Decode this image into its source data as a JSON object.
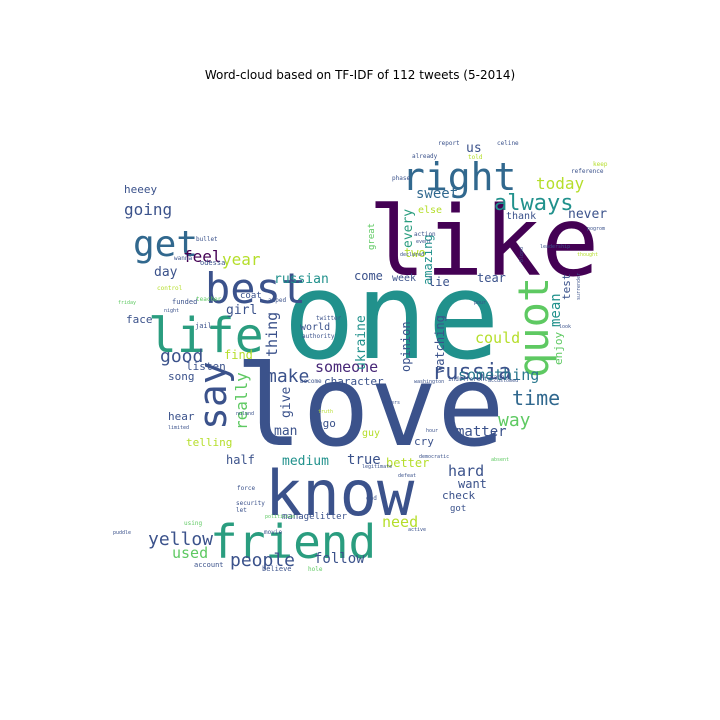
{
  "chart_data": {
    "type": "wordcloud",
    "title": "Word-cloud based on TF-IDF of 112 tweets (5-2014)",
    "shape": "twitter-bird",
    "colormap": "viridis",
    "words": [
      {
        "text": "one",
        "weight": 1.0,
        "color": "#21918c"
      },
      {
        "text": "love",
        "weight": 0.98,
        "color": "#3b528b"
      },
      {
        "text": "like",
        "weight": 0.85,
        "color": "#440154"
      },
      {
        "text": "know",
        "weight": 0.62,
        "color": "#3b528b"
      },
      {
        "text": "friend",
        "weight": 0.48,
        "color": "#2a9d7f"
      },
      {
        "text": "life",
        "weight": 0.47,
        "color": "#2a9d7f"
      },
      {
        "text": "best",
        "weight": 0.44,
        "color": "#3b528b"
      },
      {
        "text": "right",
        "weight": 0.42,
        "color": "#31688e"
      },
      {
        "text": "quot",
        "weight": 0.4,
        "color": "#5ec962"
      },
      {
        "text": "say",
        "weight": 0.4,
        "color": "#3b528b"
      },
      {
        "text": "get",
        "weight": 0.36,
        "color": "#31688e"
      },
      {
        "text": "always",
        "weight": 0.24,
        "color": "#21918c"
      },
      {
        "text": "russia",
        "weight": 0.22,
        "color": "#3b528b"
      },
      {
        "text": "people",
        "weight": 0.21,
        "color": "#3b528b"
      },
      {
        "text": "time",
        "weight": 0.2,
        "color": "#31688e"
      },
      {
        "text": "good",
        "weight": 0.19,
        "color": "#3b528b"
      },
      {
        "text": "make",
        "weight": 0.19,
        "color": "#3b528b"
      },
      {
        "text": "yellow",
        "weight": 0.18,
        "color": "#3b528b"
      },
      {
        "text": "feel",
        "weight": 0.17,
        "color": "#440154"
      },
      {
        "text": "going",
        "weight": 0.17,
        "color": "#3b528b"
      },
      {
        "text": "today",
        "weight": 0.17,
        "color": "#b5de2b"
      },
      {
        "text": "year",
        "weight": 0.17,
        "color": "#b5de2b"
      },
      {
        "text": "way",
        "weight": 0.17,
        "color": "#5ec962"
      },
      {
        "text": "something",
        "weight": 0.17,
        "color": "#2a788e"
      },
      {
        "text": "someone",
        "weight": 0.16,
        "color": "#482878"
      },
      {
        "text": "really",
        "weight": 0.16,
        "color": "#5ec962"
      },
      {
        "text": "matter",
        "weight": 0.15,
        "color": "#3b528b"
      },
      {
        "text": "sweet",
        "weight": 0.15,
        "color": "#31688e"
      },
      {
        "text": "need",
        "weight": 0.15,
        "color": "#b5de2b"
      },
      {
        "text": "hard",
        "weight": 0.15,
        "color": "#3b528b"
      },
      {
        "text": "could",
        "weight": 0.15,
        "color": "#b5de2b"
      },
      {
        "text": "used",
        "weight": 0.14,
        "color": "#5ec962"
      },
      {
        "text": "follow",
        "weight": 0.14,
        "color": "#3b528b"
      },
      {
        "text": "thing",
        "weight": 0.14,
        "color": "#3b528b"
      },
      {
        "text": "true",
        "weight": 0.14,
        "color": "#3b528b"
      },
      {
        "text": "mean",
        "weight": 0.14,
        "color": "#21918c"
      },
      {
        "text": "watching",
        "weight": 0.13,
        "color": "#3b528b"
      },
      {
        "text": "opinion",
        "weight": 0.13,
        "color": "#3b528b"
      },
      {
        "text": "russian",
        "weight": 0.13,
        "color": "#21918c"
      },
      {
        "text": "ukraine",
        "weight": 0.13,
        "color": "#21918c"
      },
      {
        "text": "medium",
        "weight": 0.13,
        "color": "#21918c"
      },
      {
        "text": "never",
        "weight": 0.12,
        "color": "#3b528b"
      },
      {
        "text": "every",
        "weight": 0.12,
        "color": "#2a9d7f"
      },
      {
        "text": "us",
        "weight": 0.12,
        "color": "#3b528b"
      },
      {
        "text": "give",
        "weight": 0.12,
        "color": "#3b528b"
      },
      {
        "text": "find",
        "weight": 0.12,
        "color": "#b5de2b"
      },
      {
        "text": "half",
        "weight": 0.12,
        "color": "#3b528b"
      },
      {
        "text": "man",
        "weight": 0.12,
        "color": "#3b528b"
      },
      {
        "text": "day",
        "weight": 0.12,
        "color": "#3b528b"
      },
      {
        "text": "girl",
        "weight": 0.11,
        "color": "#3b528b"
      },
      {
        "text": "amazing",
        "weight": 0.11,
        "color": "#21918c"
      },
      {
        "text": "come",
        "weight": 0.11,
        "color": "#3b528b"
      },
      {
        "text": "two",
        "weight": 0.11,
        "color": "#b5de2b"
      },
      {
        "text": "lie",
        "weight": 0.11,
        "color": "#3b528b"
      },
      {
        "text": "tear",
        "weight": 0.11,
        "color": "#3b528b"
      },
      {
        "text": "better",
        "weight": 0.11,
        "color": "#b5de2b"
      },
      {
        "text": "want",
        "weight": 0.11,
        "color": "#3b528b"
      },
      {
        "text": "loud",
        "weight": 0.11,
        "color": "#3b528b"
      },
      {
        "text": "test",
        "weight": 0.1,
        "color": "#3b528b"
      },
      {
        "text": "enjoy",
        "weight": 0.1,
        "color": "#5ec962"
      },
      {
        "text": "character",
        "weight": 0.1,
        "color": "#3b528b"
      },
      {
        "text": "heeey",
        "weight": 0.1,
        "color": "#3b528b"
      },
      {
        "text": "world",
        "weight": 0.1,
        "color": "#3b528b"
      },
      {
        "text": "ago",
        "weight": 0.1,
        "color": "#3b528b"
      },
      {
        "text": "face",
        "weight": 0.1,
        "color": "#3b528b"
      },
      {
        "text": "song",
        "weight": 0.1,
        "color": "#3b528b"
      },
      {
        "text": "listen",
        "weight": 0.1,
        "color": "#3b528b"
      },
      {
        "text": "hear",
        "weight": 0.1,
        "color": "#3b528b"
      },
      {
        "text": "telling",
        "weight": 0.1,
        "color": "#b5de2b"
      },
      {
        "text": "thank",
        "weight": 0.09,
        "color": "#3b528b"
      },
      {
        "text": "check",
        "weight": 0.09,
        "color": "#3b528b"
      },
      {
        "text": "cry",
        "weight": 0.09,
        "color": "#3b528b"
      },
      {
        "text": "week",
        "weight": 0.08,
        "color": "#3b528b"
      },
      {
        "text": "guy",
        "weight": 0.08,
        "color": "#b5de2b"
      },
      {
        "text": "else",
        "weight": 0.08,
        "color": "#b5de2b"
      },
      {
        "text": "great",
        "weight": 0.08,
        "color": "#5ec962"
      },
      {
        "text": "got",
        "weight": 0.07,
        "color": "#3b528b"
      },
      {
        "text": "coat",
        "weight": 0.06,
        "color": "#3b528b"
      },
      {
        "text": "managelitter",
        "weight": 0.06,
        "color": "#3b528b"
      },
      {
        "text": "account",
        "weight": 0.05,
        "color": "#3b528b"
      },
      {
        "text": "believe",
        "weight": 0.05,
        "color": "#3b528b"
      },
      {
        "text": "hole",
        "weight": 0.04,
        "color": "#5ec962"
      },
      {
        "text": "odessa",
        "weight": 0.05,
        "color": "#3b528b"
      },
      {
        "text": "jail",
        "weight": 0.05,
        "color": "#3b528b"
      },
      {
        "text": "control",
        "weight": 0.05,
        "color": "#b5de2b"
      },
      {
        "text": "funded",
        "weight": 0.05,
        "color": "#3b528b"
      },
      {
        "text": "teacher",
        "weight": 0.05,
        "color": "#5ec962"
      },
      {
        "text": "amped",
        "weight": 0.05,
        "color": "#3b528b"
      },
      {
        "text": "twitter",
        "weight": 0.05,
        "color": "#3b528b"
      },
      {
        "text": "authority",
        "weight": 0.05,
        "color": "#3b528b"
      },
      {
        "text": "become",
        "weight": 0.05,
        "color": "#3b528b"
      },
      {
        "text": "truth",
        "weight": 0.05,
        "color": "#b5de2b"
      },
      {
        "text": "phase",
        "weight": 0.05,
        "color": "#3b528b"
      },
      {
        "text": "action",
        "weight": 0.05,
        "color": "#3b528b"
      },
      {
        "text": "event",
        "weight": 0.05,
        "color": "#3b528b"
      },
      {
        "text": "declared",
        "weight": 0.05,
        "color": "#3b528b"
      },
      {
        "text": "already",
        "weight": 0.06,
        "color": "#3b528b"
      },
      {
        "text": "told",
        "weight": 0.06,
        "color": "#b5de2b"
      },
      {
        "text": "report",
        "weight": 0.05,
        "color": "#3b528b"
      },
      {
        "text": "celine",
        "weight": 0.05,
        "color": "#3b528b"
      },
      {
        "text": "keep",
        "weight": 0.05,
        "color": "#b5de2b"
      },
      {
        "text": "reference",
        "weight": 0.05,
        "color": "#3b528b"
      },
      {
        "text": "thought",
        "weight": 0.05,
        "color": "#b5de2b"
      },
      {
        "text": "blood",
        "weight": 0.04,
        "color": "#3b528b"
      },
      {
        "text": "surrender",
        "weight": 0.04,
        "color": "#3b528b"
      },
      {
        "text": "pour",
        "weight": 0.04,
        "color": "#3b528b"
      },
      {
        "text": "look",
        "weight": 0.04,
        "color": "#3b528b"
      },
      {
        "text": "name",
        "weight": 0.05,
        "color": "#3b528b"
      },
      {
        "text": "indifferent",
        "weight": 0.05,
        "color": "#3b528b"
      },
      {
        "text": "accustomed",
        "weight": 0.05,
        "color": "#3b528b"
      },
      {
        "text": "washington",
        "weight": 0.05,
        "color": "#3b528b"
      },
      {
        "text": "enters",
        "weight": 0.05,
        "color": "#3b528b"
      },
      {
        "text": "hour",
        "weight": 0.04,
        "color": "#3b528b"
      },
      {
        "text": "democratic",
        "weight": 0.04,
        "color": "#3b528b"
      },
      {
        "text": "legitimate",
        "weight": 0.04,
        "color": "#3b528b"
      },
      {
        "text": "defeat",
        "weight": 0.04,
        "color": "#3b528b"
      },
      {
        "text": "absent",
        "weight": 0.04,
        "color": "#5ec962"
      },
      {
        "text": "end",
        "weight": 0.04,
        "color": "#3b528b"
      },
      {
        "text": "active",
        "weight": 0.04,
        "color": "#3b528b"
      },
      {
        "text": "security",
        "weight": 0.05,
        "color": "#3b528b"
      },
      {
        "text": "let",
        "weight": 0.05,
        "color": "#3b528b"
      },
      {
        "text": "politician",
        "weight": 0.04,
        "color": "#5ec962"
      },
      {
        "text": "force",
        "weight": 0.05,
        "color": "#3b528b"
      },
      {
        "text": "movie",
        "weight": 0.05,
        "color": "#3b528b"
      },
      {
        "text": "night",
        "weight": 0.04,
        "color": "#3b528b"
      },
      {
        "text": "friday",
        "weight": 0.04,
        "color": "#5ec962"
      },
      {
        "text": "bullet",
        "weight": 0.04,
        "color": "#3b528b"
      },
      {
        "text": "wanna",
        "weight": 0.05,
        "color": "#3b528b"
      },
      {
        "text": "nuland",
        "weight": 0.04,
        "color": "#3b528b"
      },
      {
        "text": "limited",
        "weight": 0.04,
        "color": "#3b528b"
      },
      {
        "text": "puddle",
        "weight": 0.04,
        "color": "#3b528b"
      },
      {
        "text": "using",
        "weight": 0.05,
        "color": "#5ec962"
      },
      {
        "text": "leadership",
        "weight": 0.04,
        "color": "#3b528b"
      },
      {
        "text": "pogrom",
        "weight": 0.04,
        "color": "#3b528b"
      }
    ]
  }
}
